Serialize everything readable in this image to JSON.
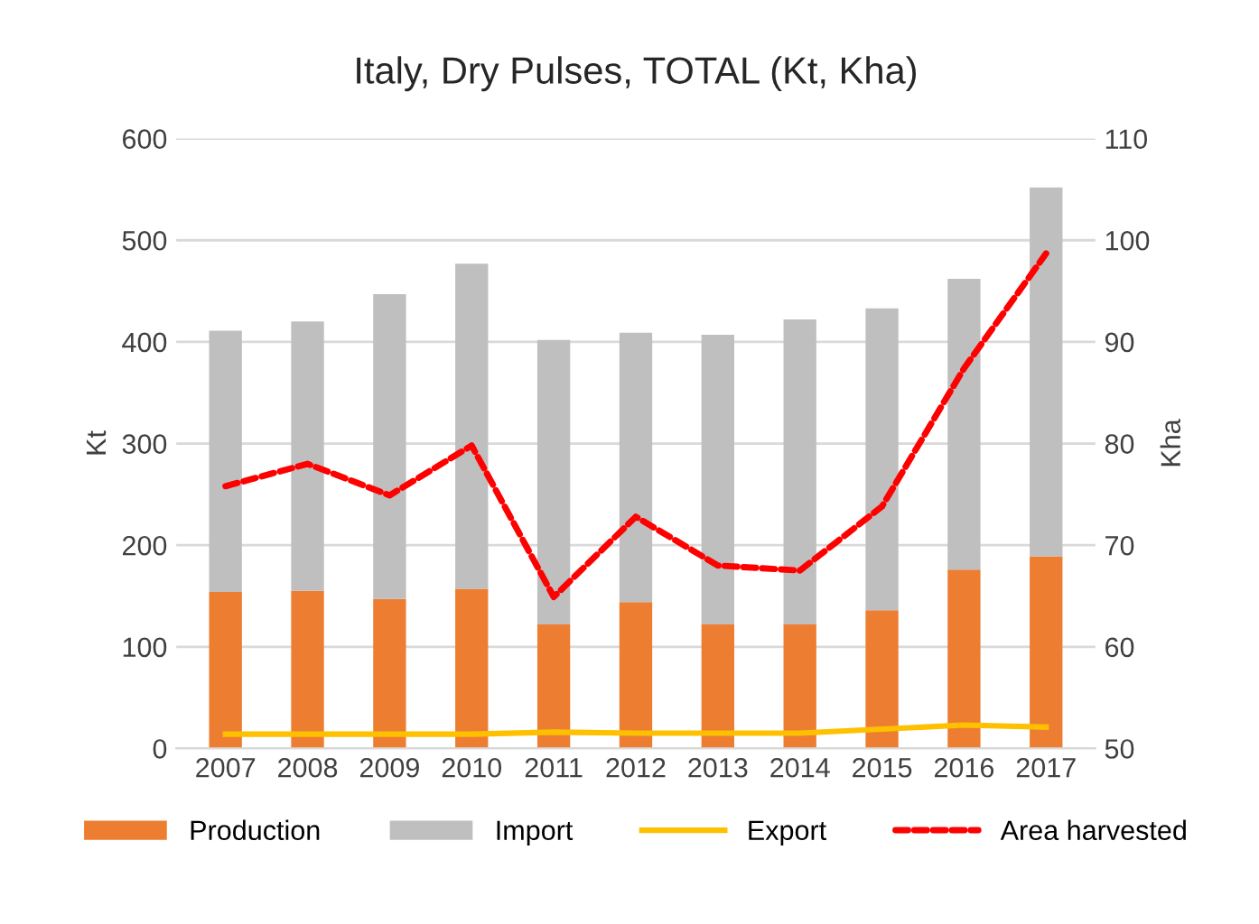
{
  "chart_data": {
    "type": "bar",
    "title": "Italy, Dry Pulses, TOTAL (Kt, Kha)",
    "ylabel": "Kt",
    "y2label": "Kha",
    "stacked": true,
    "categories": [
      "2007",
      "2008",
      "2009",
      "2010",
      "2011",
      "2012",
      "2013",
      "2014",
      "2015",
      "2016",
      "2017"
    ],
    "series": [
      {
        "name": "Production",
        "color": "#ed7d31",
        "values": [
          154,
          155,
          147,
          157,
          122,
          144,
          122,
          122,
          136,
          176,
          189
        ]
      },
      {
        "name": "Import",
        "color": "#bfbfbf",
        "values": [
          257,
          265,
          300,
          320,
          280,
          265,
          285,
          300,
          297,
          286,
          363
        ]
      },
      {
        "name": "Export",
        "type": "line",
        "color": "#ffc000",
        "line_style": "solid",
        "values": [
          14,
          14,
          14,
          14,
          16,
          15,
          15,
          15,
          19,
          23,
          21
        ]
      },
      {
        "name": "Area harvested",
        "type": "line",
        "axis": "y2",
        "color": "#ff0000",
        "line_style": "dashed",
        "values": [
          75.8,
          78.0,
          74.9,
          79.8,
          64.9,
          72.8,
          68.0,
          67.5,
          73.8,
          87.4,
          98.7
        ]
      }
    ],
    "ylim": [
      0,
      600
    ],
    "yticks": [
      0,
      100,
      200,
      300,
      400,
      500,
      600
    ],
    "y2lim": [
      50,
      110
    ],
    "y2ticks": [
      50,
      60,
      70,
      80,
      90,
      100,
      110
    ],
    "grid": "y",
    "legend": "bottom"
  }
}
